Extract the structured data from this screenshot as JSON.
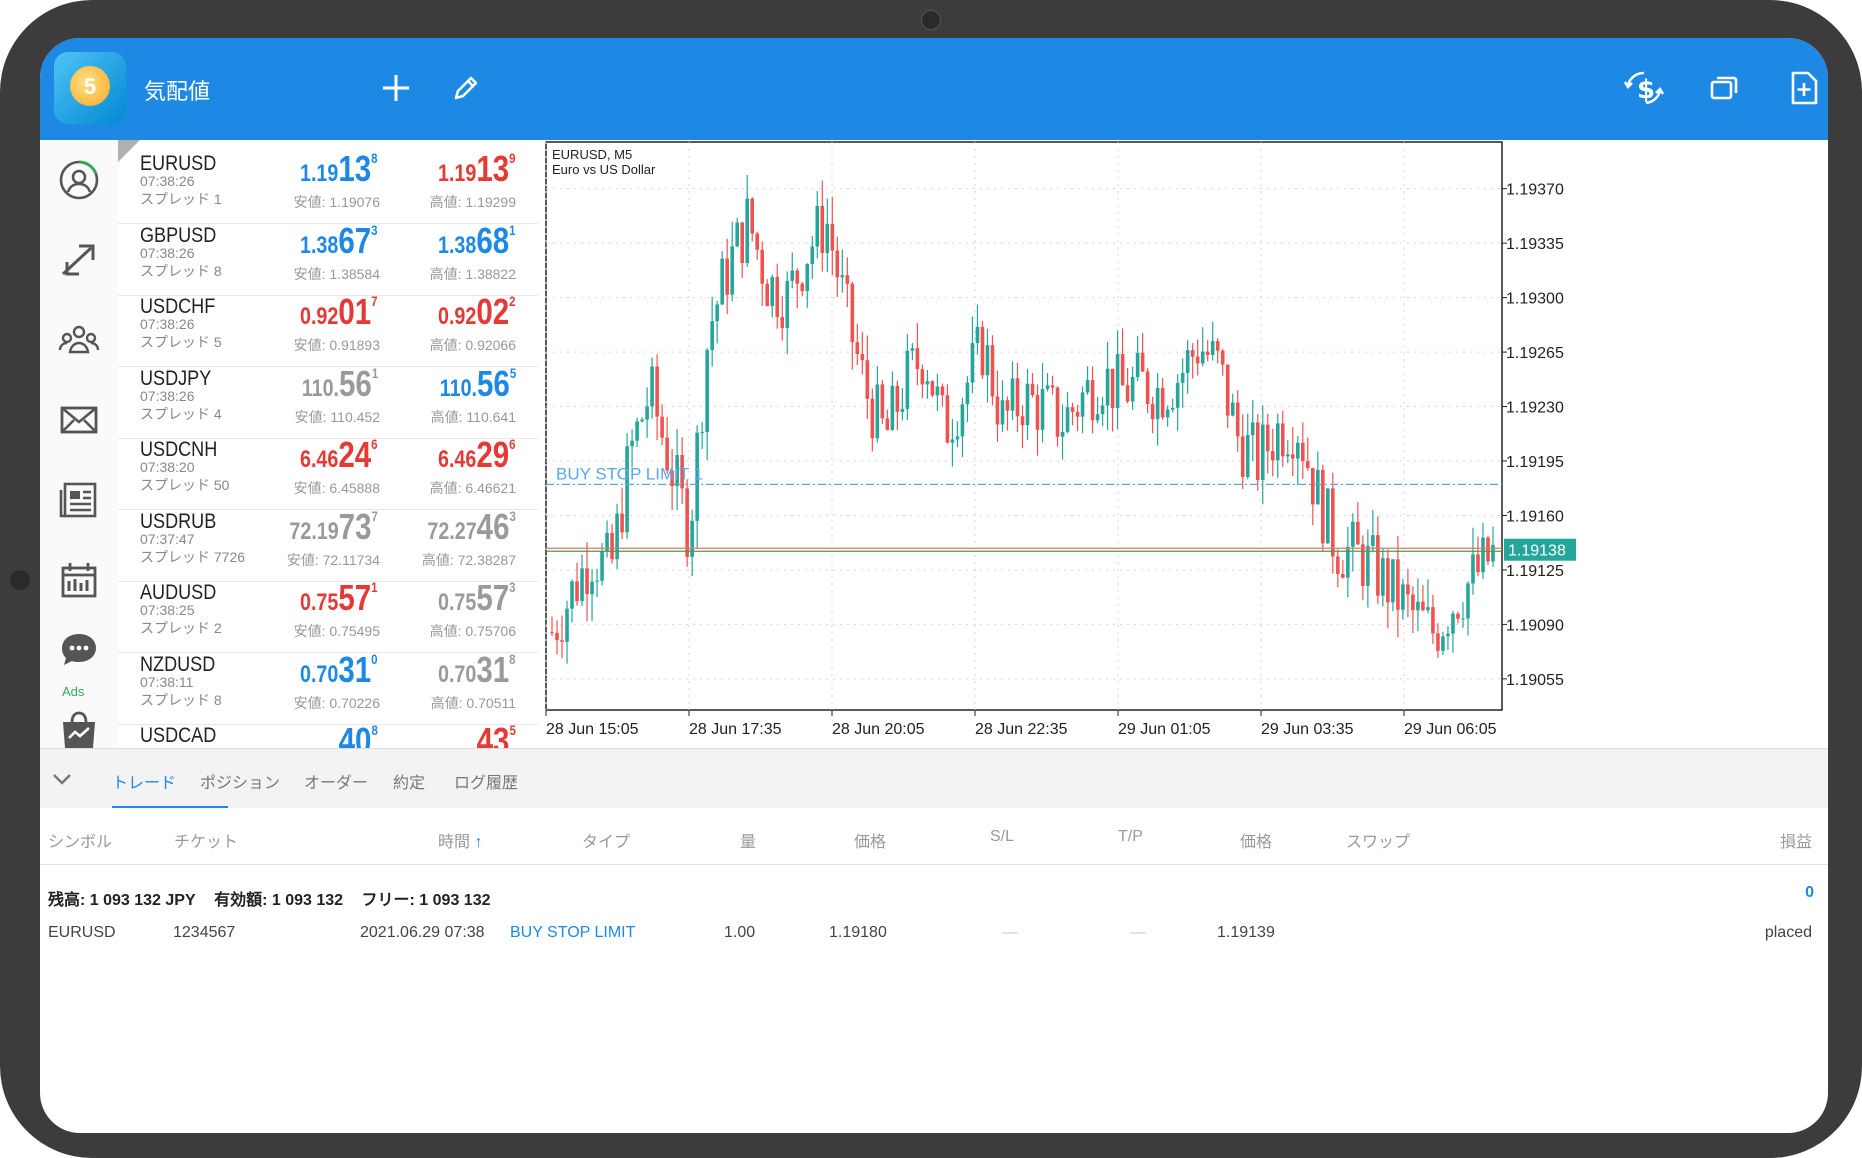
{
  "app": {
    "title": "気配値"
  },
  "colors": {
    "accent": "#1e88e5",
    "up": "#1e88e5",
    "down": "#e53935",
    "bull_candle": "#26a69a",
    "bear_candle": "#ef5350",
    "ads": "#3aa657"
  },
  "toolbar": {
    "icons": [
      "add-icon",
      "pencil-icon",
      "exchange-dollar-icon",
      "windows-icon",
      "new-document-icon"
    ]
  },
  "nav": {
    "items": [
      "account-icon",
      "trade-arrows-icon",
      "community-icon",
      "mail-icon",
      "news-icon",
      "calendar-icon",
      "chat-icon",
      "market-icon"
    ],
    "ads_label": "Ads"
  },
  "quotes": [
    {
      "symbol": "EURUSD",
      "time": "07:38:26",
      "spread": "スプレッド 1",
      "bid": {
        "a": "1.19",
        "b": "13",
        "c": "8",
        "dir": "up"
      },
      "ask": {
        "a": "1.19",
        "b": "13",
        "c": "9",
        "dir": "dn"
      },
      "low": "安値: 1.19076",
      "high": "高値: 1.19299"
    },
    {
      "symbol": "GBPUSD",
      "time": "07:38:26",
      "spread": "スプレッド 8",
      "bid": {
        "a": "1.38",
        "b": "67",
        "c": "3",
        "dir": "up"
      },
      "ask": {
        "a": "1.38",
        "b": "68",
        "c": "1",
        "dir": "up"
      },
      "low": "安値: 1.38584",
      "high": "高値: 1.38822"
    },
    {
      "symbol": "USDCHF",
      "time": "07:38:26",
      "spread": "スプレッド 5",
      "bid": {
        "a": "0.92",
        "b": "01",
        "c": "7",
        "dir": "dn"
      },
      "ask": {
        "a": "0.92",
        "b": "02",
        "c": "2",
        "dir": "dn"
      },
      "low": "安値: 0.91893",
      "high": "高値: 0.92066"
    },
    {
      "symbol": "USDJPY",
      "time": "07:38:26",
      "spread": "スプレッド 4",
      "bid": {
        "a": "110.",
        "b": "56",
        "c": "1",
        "dir": "ne"
      },
      "ask": {
        "a": "110.",
        "b": "56",
        "c": "5",
        "dir": "up"
      },
      "low": "安値: 110.452",
      "high": "高値: 110.641"
    },
    {
      "symbol": "USDCNH",
      "time": "07:38:20",
      "spread": "スプレッド 50",
      "bid": {
        "a": "6.46",
        "b": "24",
        "c": "6",
        "dir": "dn"
      },
      "ask": {
        "a": "6.46",
        "b": "29",
        "c": "6",
        "dir": "dn"
      },
      "low": "安値: 6.45888",
      "high": "高値: 6.46621"
    },
    {
      "symbol": "USDRUB",
      "time": "07:37:47",
      "spread": "スプレッド 7726",
      "bid": {
        "a": "72.19",
        "b": "73",
        "c": "7",
        "dir": "ne"
      },
      "ask": {
        "a": "72.27",
        "b": "46",
        "c": "3",
        "dir": "ne"
      },
      "low": "安値: 72.11734",
      "high": "高値: 72.38287"
    },
    {
      "symbol": "AUDUSD",
      "time": "07:38:25",
      "spread": "スプレッド 2",
      "bid": {
        "a": "0.75",
        "b": "57",
        "c": "1",
        "dir": "dn"
      },
      "ask": {
        "a": "0.75",
        "b": "57",
        "c": "3",
        "dir": "ne"
      },
      "low": "安値: 0.75495",
      "high": "高値: 0.75706"
    },
    {
      "symbol": "NZDUSD",
      "time": "07:38:11",
      "spread": "スプレッド 8",
      "bid": {
        "a": "0.70",
        "b": "31",
        "c": "0",
        "dir": "up"
      },
      "ask": {
        "a": "0.70",
        "b": "31",
        "c": "8",
        "dir": "ne"
      },
      "low": "安値: 0.70226",
      "high": "高値: 0.70511"
    },
    {
      "symbol": "USDCAD",
      "time": "",
      "spread": "",
      "bid": {
        "a": "",
        "b": "40",
        "c": "8",
        "dir": "up"
      },
      "ask": {
        "a": "",
        "b": "43",
        "c": "5",
        "dir": "dn"
      },
      "low": "",
      "high": ""
    }
  ],
  "chart": {
    "symbol_line": "EURUSD, M5",
    "description": "Euro vs US Dollar",
    "current_price": "1.19138",
    "order_label": "BUY STOP LIMIT 1",
    "y_ticks": [
      "1.19370",
      "1.19335",
      "1.19300",
      "1.19265",
      "1.19230",
      "1.19195",
      "1.19160",
      "1.19125",
      "1.19090",
      "1.19055"
    ],
    "x_ticks": [
      "28 Jun 15:05",
      "28 Jun 17:35",
      "28 Jun 20:05",
      "28 Jun 22:35",
      "29 Jun 01:05",
      "29 Jun 03:35",
      "29 Jun 06:05"
    ]
  },
  "chart_data": {
    "type": "candlestick",
    "title": "EURUSD, M5",
    "subtitle": "Euro vs US Dollar",
    "ylim": [
      1.19035,
      1.194
    ],
    "x_ticks": [
      "28 Jun 15:05",
      "28 Jun 17:35",
      "28 Jun 20:05",
      "28 Jun 22:35",
      "29 Jun 01:05",
      "29 Jun 03:35",
      "29 Jun 06:05"
    ],
    "close_path": [
      1.19085,
      1.1911,
      1.19135,
      1.19125,
      1.192,
      1.1924,
      1.19195,
      1.1915,
      1.1928,
      1.1932,
      1.1935,
      1.1931,
      1.193,
      1.1933,
      1.1935,
      1.1929,
      1.1924,
      1.1921,
      1.19245,
      1.19265,
      1.19215,
      1.1924,
      1.1927,
      1.1922,
      1.19235,
      1.1923,
      1.1922,
      1.19235,
      1.1925,
      1.1924,
      1.19245,
      1.1924,
      1.1925,
      1.1927,
      1.19255,
      1.1921,
      1.19195,
      1.19215,
      1.1922,
      1.19175,
      1.1914,
      1.19135,
      1.19125,
      1.1911,
      1.19095,
      1.19085,
      1.19105,
      1.1912,
      1.19135
    ],
    "current_price": 1.19138,
    "order_level": 1.1918,
    "grid": true
  },
  "tabs": [
    "トレード",
    "ポジション",
    "オーダー",
    "約定",
    "ログ履歴"
  ],
  "table": {
    "headers": [
      "シンボル",
      "チケット",
      "時間",
      "タイプ",
      "量",
      "価格",
      "S/L",
      "T/P",
      "価格",
      "スワップ",
      "損益"
    ],
    "balance": {
      "zan": "残高:  1 093 132 JPY",
      "yuko": "有効額:  1 093 132",
      "free": "フリー:  1 093 132"
    },
    "total_profit": "0",
    "orders": [
      {
        "symbol": "EURUSD",
        "ticket": "1234567",
        "time": "2021.06.29 07:38",
        "type": "BUY STOP LIMIT",
        "volume": "1.00",
        "price": "1.19180",
        "sl": "—",
        "tp": "—",
        "cur_price": "1.19139",
        "swap": "",
        "profit": "placed"
      }
    ]
  }
}
